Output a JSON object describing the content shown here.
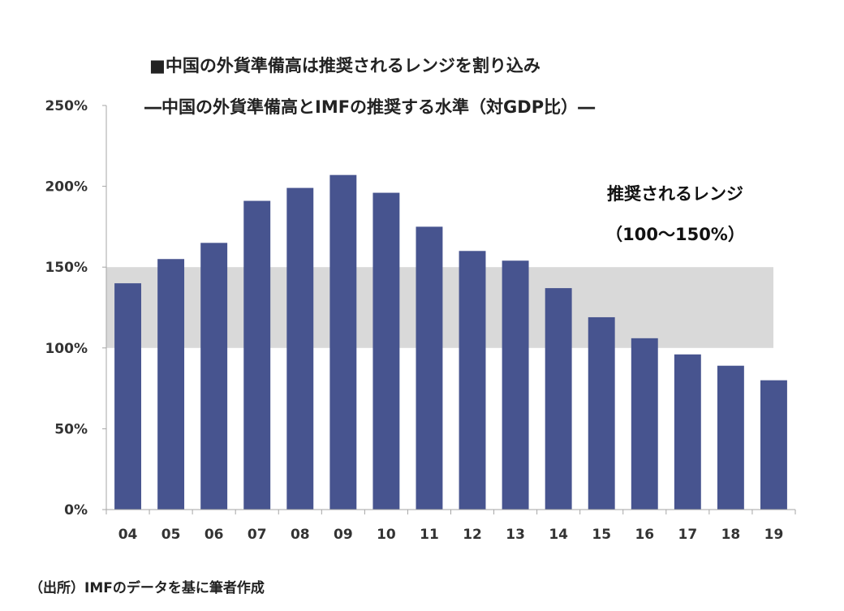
{
  "chart_data": {
    "type": "bar",
    "title": "■中国の外貨準備高は推奨されるレンジを割り込み",
    "subtitle": "―中国の外貨準備高とIMFの推奨する水準（対GDP比）―",
    "xlabel": "",
    "ylabel": "",
    "categories": [
      "04",
      "05",
      "06",
      "07",
      "08",
      "09",
      "10",
      "11",
      "12",
      "13",
      "14",
      "15",
      "16",
      "17",
      "18",
      "19"
    ],
    "values": [
      140,
      155,
      165,
      191,
      199,
      207,
      196,
      175,
      160,
      154,
      137,
      119,
      106,
      96,
      89,
      80
    ],
    "unit": "%",
    "ylim": [
      0,
      250
    ],
    "yticks": [
      0,
      50,
      100,
      150,
      200,
      250
    ],
    "ytick_labels": [
      "0%",
      "50%",
      "100%",
      "150%",
      "200%",
      "250%"
    ],
    "bar_color": "#47548f",
    "recommended_range": {
      "low": 100,
      "high": 150,
      "color": "#d9d9d9",
      "label_line1": "推奨されるレンジ",
      "label_line2": "（100～150%）"
    },
    "grid": false,
    "legend": "none"
  },
  "source": "（出所）IMFのデータを基に筆者作成"
}
